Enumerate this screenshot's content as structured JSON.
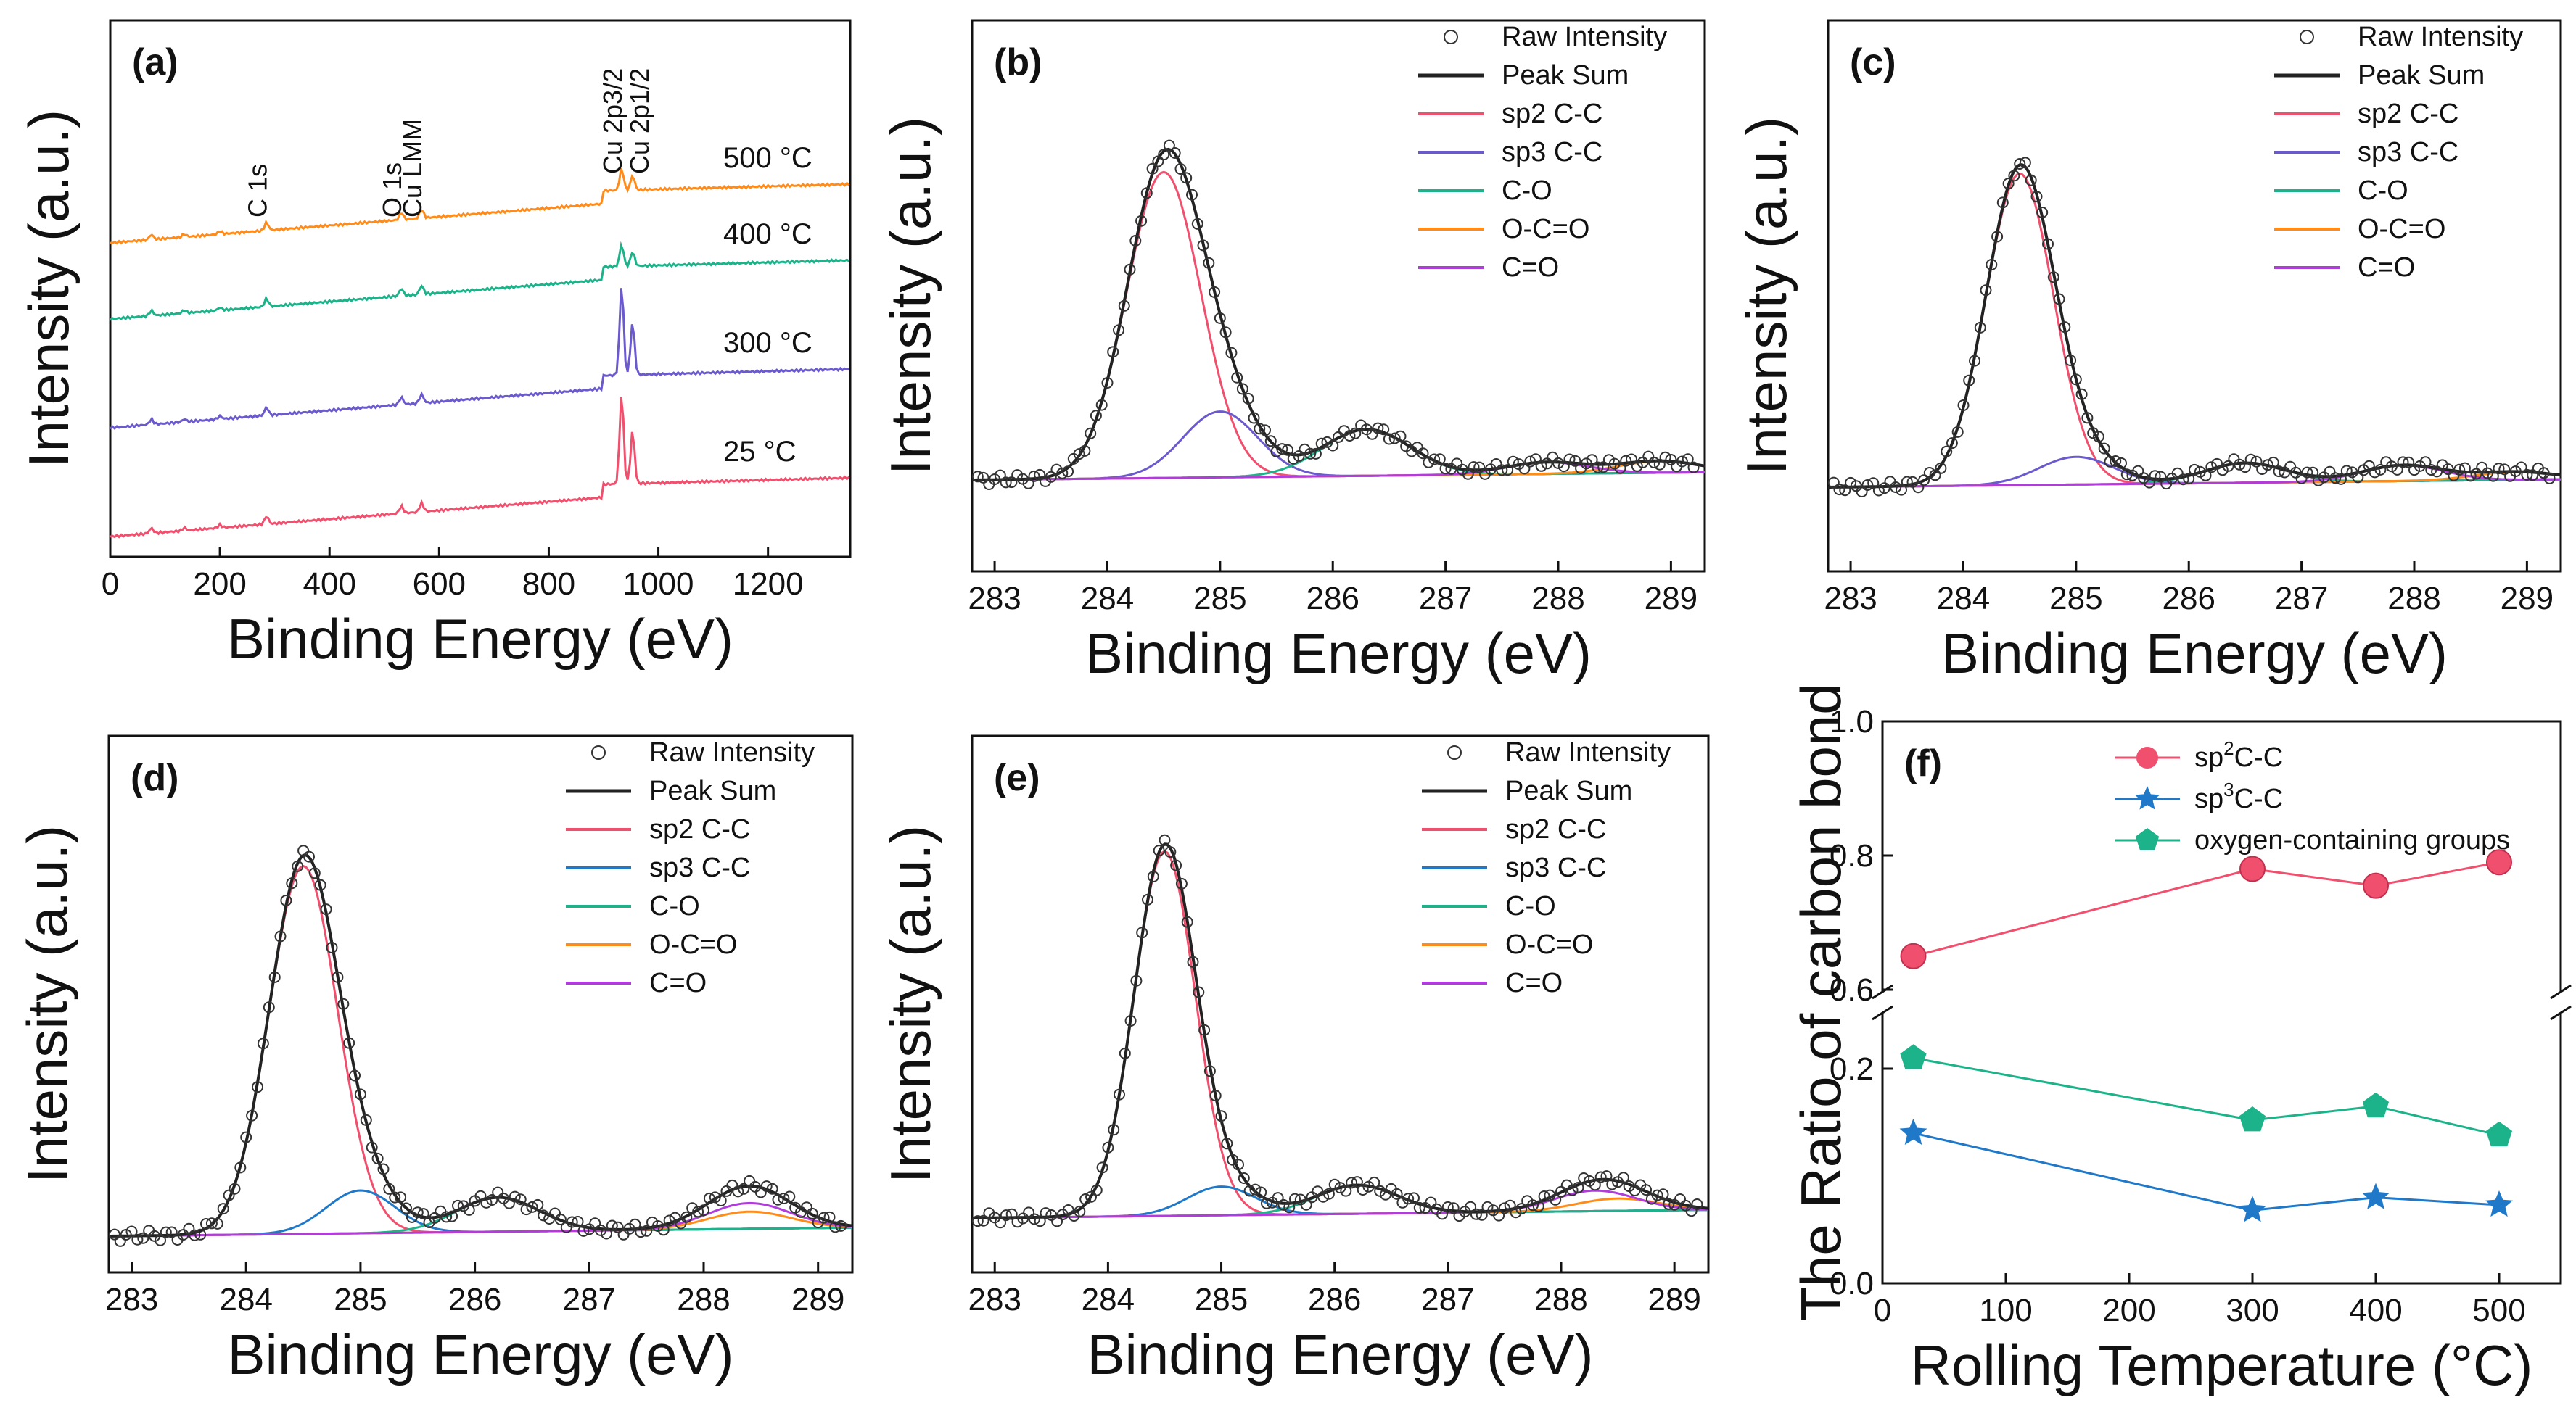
{
  "figure": {
    "colors": {
      "sp2": "#f0506e",
      "sp3": "#6a5acd",
      "sp3_blue": "#1f78c8",
      "co": "#1db38a",
      "oco": "#ff8c1a",
      "cdo": "#b03cdc",
      "sum": "#222222",
      "raw": "#333333",
      "xps25": "#f0506e",
      "xps300": "#6a5acd",
      "xps400": "#1db38a",
      "xps500": "#ff8c1a"
    }
  },
  "chart_data": [
    {
      "id": "a",
      "type": "line",
      "panel_label": "(a)",
      "xlabel": "Binding Energy (eV)",
      "ylabel": "Intensity (a.u.)",
      "xlim": [
        0,
        1350
      ],
      "x_ticks": [
        "0",
        "200",
        "400",
        "600",
        "800",
        "1000",
        "1200"
      ],
      "series": [
        {
          "name": "500 °C",
          "label_main": "500 °C",
          "offset": 3,
          "color_key": "xps500"
        },
        {
          "name": "400 °C",
          "label_main": "400 °C",
          "offset": 2,
          "color_key": "xps400"
        },
        {
          "name": "300 °C",
          "label_main": "300 °C",
          "offset": 1,
          "color_key": "xps300"
        },
        {
          "name": "25 °C",
          "label_main": "25 °C",
          "offset": 0,
          "color_key": "xps25"
        }
      ],
      "annotations": [
        {
          "text": "C 1s",
          "x": 285
        },
        {
          "text": "O 1s",
          "x": 531
        },
        {
          "text": "Cu LMM",
          "x": 568
        },
        {
          "text": "Cu 2p3/2",
          "x": 933
        },
        {
          "text": "Cu 2p1/2",
          "x": 953
        }
      ]
    },
    {
      "id": "b",
      "type": "line",
      "panel_label": "(b)",
      "xlabel": "Binding Energy (eV)",
      "ylabel": "Intensity (a.u.)",
      "xlim": [
        282.8,
        289.3
      ],
      "x_ticks": [
        "283",
        "284",
        "285",
        "286",
        "287",
        "288",
        "289"
      ],
      "legend": [
        "Raw Intensity",
        "Peak Sum",
        "sp2 C-C",
        "sp3 C-C",
        "C-O",
        "O-C=O",
        "C=O"
      ],
      "peaks": [
        {
          "name": "sp2 C-C",
          "center": 284.5,
          "height": 0.79,
          "width": 0.55,
          "color_key": "sp2"
        },
        {
          "name": "sp3 C-C",
          "center": 285.0,
          "height": 0.17,
          "width": 0.55,
          "color_key": "sp3"
        },
        {
          "name": "C-O",
          "center": 286.3,
          "height": 0.12,
          "width": 0.65,
          "color_key": "co"
        },
        {
          "name": "O-C=O",
          "center": 288.9,
          "height": 0.03,
          "width": 0.6,
          "color_key": "oco"
        },
        {
          "name": "C=O",
          "center": 287.9,
          "height": 0.03,
          "width": 0.6,
          "color_key": "cdo"
        }
      ]
    },
    {
      "id": "c",
      "type": "line",
      "panel_label": "(c)",
      "xlabel": "Binding Energy (eV)",
      "ylabel": "Intensity (a.u.)",
      "xlim": [
        282.8,
        289.3
      ],
      "x_ticks": [
        "283",
        "284",
        "285",
        "286",
        "287",
        "288",
        "289"
      ],
      "legend": [
        "Raw Intensity",
        "Peak Sum",
        "sp2 C-C",
        "sp3 C-C",
        "C-O",
        "O-C=O",
        "C=O"
      ],
      "peaks": [
        {
          "name": "sp2 C-C",
          "center": 284.5,
          "height": 0.79,
          "width": 0.5,
          "color_key": "sp2"
        },
        {
          "name": "sp3 C-C",
          "center": 285.0,
          "height": 0.07,
          "width": 0.55,
          "color_key": "sp3"
        },
        {
          "name": "C-O",
          "center": 286.5,
          "height": 0.05,
          "width": 0.6,
          "color_key": "co"
        },
        {
          "name": "O-C=O",
          "center": 288.9,
          "height": 0.02,
          "width": 0.6,
          "color_key": "oco"
        },
        {
          "name": "C=O",
          "center": 287.9,
          "height": 0.04,
          "width": 0.6,
          "color_key": "cdo"
        }
      ]
    },
    {
      "id": "d",
      "type": "line",
      "panel_label": "(d)",
      "xlabel": "Binding Energy (eV)",
      "ylabel": "Intensity (a.u.)",
      "xlim": [
        282.8,
        289.3
      ],
      "x_ticks": [
        "283",
        "284",
        "285",
        "286",
        "287",
        "288",
        "289"
      ],
      "legend": [
        "Raw Intensity",
        "Peak Sum",
        "sp2 C-C",
        "sp3 C-C",
        "C-O",
        "O-C=O",
        "C=O"
      ],
      "peaks": [
        {
          "name": "sp2 C-C",
          "center": 284.5,
          "height": 0.86,
          "width": 0.5,
          "color_key": "sp2"
        },
        {
          "name": "sp3 C-C",
          "center": 285.0,
          "height": 0.1,
          "width": 0.5,
          "color_key": "sp3_blue"
        },
        {
          "name": "C-O",
          "center": 286.2,
          "height": 0.08,
          "width": 0.6,
          "color_key": "co"
        },
        {
          "name": "O-C=O",
          "center": 288.4,
          "height": 0.04,
          "width": 0.6,
          "color_key": "oco"
        },
        {
          "name": "C=O",
          "center": 288.4,
          "height": 0.06,
          "width": 0.6,
          "color_key": "cdo"
        }
      ]
    },
    {
      "id": "e",
      "type": "line",
      "panel_label": "(e)",
      "xlabel": "Binding Energy (eV)",
      "ylabel": "Intensity (a.u.)",
      "xlim": [
        282.8,
        289.3
      ],
      "x_ticks": [
        "283",
        "284",
        "285",
        "286",
        "287",
        "288",
        "289"
      ],
      "legend": [
        "Raw Intensity",
        "Peak Sum",
        "sp2 C-C",
        "sp3 C-C",
        "C-O",
        "O-C=O",
        "C=O"
      ],
      "peaks": [
        {
          "name": "sp2 C-C",
          "center": 284.5,
          "height": 0.89,
          "width": 0.45,
          "color_key": "sp2"
        },
        {
          "name": "sp3 C-C",
          "center": 285.0,
          "height": 0.07,
          "width": 0.5,
          "color_key": "sp3_blue"
        },
        {
          "name": "C-O",
          "center": 286.2,
          "height": 0.07,
          "width": 0.6,
          "color_key": "co"
        },
        {
          "name": "O-C=O",
          "center": 288.5,
          "height": 0.03,
          "width": 0.6,
          "color_key": "oco"
        },
        {
          "name": "C=O",
          "center": 288.3,
          "height": 0.05,
          "width": 0.6,
          "color_key": "cdo"
        }
      ]
    },
    {
      "id": "f",
      "type": "line",
      "panel_label": "(f)",
      "xlabel": "Rolling Temperature (°C)",
      "ylabel": "The Ratio of carbon bond",
      "xlim": [
        0,
        550
      ],
      "x_ticks": [
        "0",
        "100",
        "200",
        "300",
        "400",
        "500"
      ],
      "y_ticks_upper": [
        "0.6",
        "0.8",
        "1.0"
      ],
      "y_ticks_lower": [
        "0.0",
        "0.2"
      ],
      "ylim_lower": [
        0,
        0.25
      ],
      "ylim_upper": [
        0.6,
        1.0
      ],
      "x": [
        25,
        300,
        400,
        500
      ],
      "series": [
        {
          "name": "sp2C-C",
          "legend_main": "sp",
          "legend_sup": "2",
          "legend_rest": "C-C",
          "values": [
            0.65,
            0.78,
            0.755,
            0.79
          ],
          "color_key": "sp2",
          "marker": "circle"
        },
        {
          "name": "sp3C-C",
          "legend_main": "sp",
          "legend_sup": "3",
          "legend_rest": "C-C",
          "values": [
            0.14,
            0.068,
            0.08,
            0.073
          ],
          "color_key": "sp3_blue",
          "marker": "star"
        },
        {
          "name": "oxygen-containing groups",
          "legend_main": "oxygen-containing groups",
          "legend_sup": "",
          "legend_rest": "",
          "values": [
            0.21,
            0.152,
            0.165,
            0.138
          ],
          "color_key": "co",
          "marker": "pentagon"
        }
      ]
    }
  ]
}
